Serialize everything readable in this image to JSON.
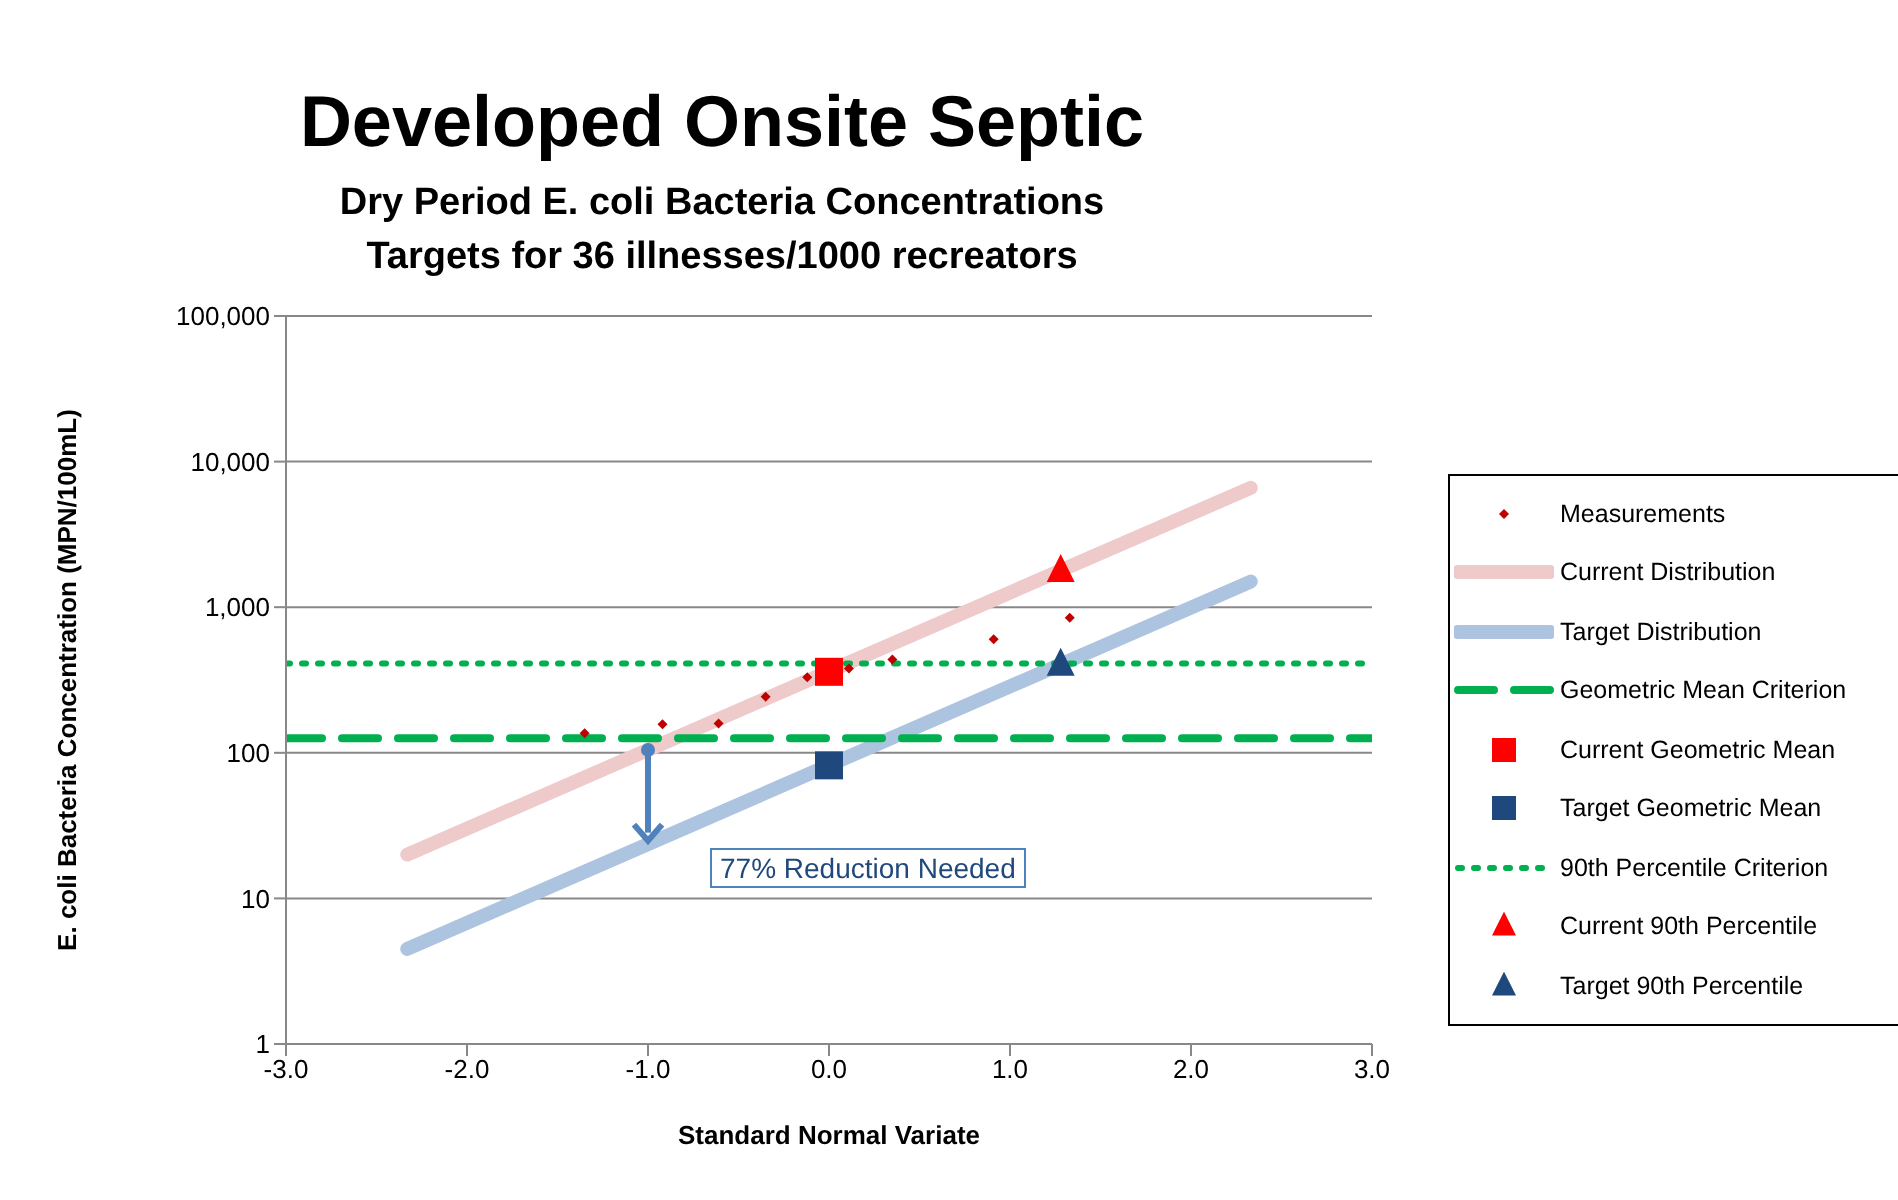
{
  "chart_data": {
    "type": "scatter",
    "title": "Developed Onsite Septic",
    "subtitle": "Dry Period E. coli Bacteria Concentrations\nTargets for 36 illnesses/1000 recreators",
    "xlabel": "Standard Normal Variate",
    "ylabel": "E. coli Bacteria Concentration (MPN/100mL)",
    "xlim": [
      -3,
      3
    ],
    "xticks": [
      {
        "value": -3,
        "label": "-3.0"
      },
      {
        "value": -2,
        "label": "-2.0"
      },
      {
        "value": -1,
        "label": "-1.0"
      },
      {
        "value": 0,
        "label": "0.0"
      },
      {
        "value": 1,
        "label": "1.0"
      },
      {
        "value": 2,
        "label": "2.0"
      },
      {
        "value": 3,
        "label": "3.0"
      }
    ],
    "ylim": [
      1,
      100000
    ],
    "yticks": [
      1,
      10,
      100,
      {
        "value": 1000,
        "label": "1,000"
      },
      {
        "value": 10000,
        "label": "10,000"
      },
      {
        "value": 100000,
        "label": "100,000"
      }
    ],
    "log": "y",
    "grid": "y",
    "legend": "right",
    "series": [
      {
        "name": "Measurements",
        "marker": "diamond",
        "color": "#c00000",
        "x": [
          -1.35,
          -0.92,
          -0.61,
          -0.35,
          -0.12,
          0.11,
          0.35,
          0.91,
          1.33
        ],
        "values": [
          136,
          157,
          159,
          243,
          330,
          379,
          438,
          602,
          845
        ]
      },
      {
        "name": "Current Distribution",
        "type": "line",
        "line_style": "solid",
        "color": "#eecaca",
        "x": [
          -2.33,
          2.33
        ],
        "values": [
          20,
          6600
        ]
      },
      {
        "name": "Target Distribution",
        "type": "line",
        "line_style": "solid",
        "color": "#adc4e0",
        "x": [
          -2.33,
          2.33
        ],
        "values": [
          4.5,
          1500
        ]
      },
      {
        "name": "Geometric Mean Criterion",
        "type": "line",
        "line_style": "dashed",
        "color": "#00b050",
        "x": [
          -3,
          3
        ],
        "values": [
          126,
          126
        ]
      },
      {
        "name": "Current Geometric Mean",
        "marker": "square",
        "color": "#ff0000",
        "x": [
          0
        ],
        "values": [
          360
        ]
      },
      {
        "name": "Target Geometric Mean",
        "marker": "square",
        "color": "#1f497d",
        "x": [
          0
        ],
        "values": [
          82
        ]
      },
      {
        "name": "90th Percentile Criterion",
        "type": "line",
        "line_style": "dotted",
        "color": "#00b050",
        "x": [
          -3,
          3
        ],
        "values": [
          410,
          410
        ]
      },
      {
        "name": "Current 90th Percentile",
        "marker": "triangle",
        "color": "#ff0000",
        "x": [
          1.28
        ],
        "values": [
          1780
        ]
      },
      {
        "name": "Target 90th Percentile",
        "marker": "triangle",
        "color": "#1f497d",
        "x": [
          1.28
        ],
        "values": [
          404
        ]
      }
    ],
    "annotations": [
      {
        "text": "77% Reduction Needed",
        "x": -1,
        "y": 23.4
      }
    ]
  }
}
